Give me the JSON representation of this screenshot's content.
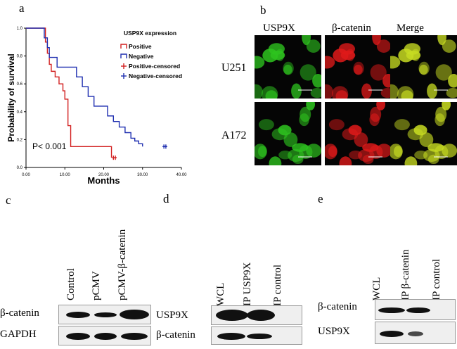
{
  "panels": {
    "a": "a",
    "b": "b",
    "c": "c",
    "d": "d",
    "e": "e"
  },
  "chart_data": {
    "type": "line",
    "title": "",
    "legend_title": "USP9X expression",
    "xlabel": "Months",
    "ylabel": "Probability of survival",
    "annotation": "P< 0.001",
    "xlim": [
      0,
      40
    ],
    "ylim": [
      0,
      1
    ],
    "x_ticks": [
      "0.00",
      "10.00",
      "20.00",
      "30.00",
      "40.00"
    ],
    "y_ticks": [
      "0.0",
      "0.2",
      "0.4",
      "0.6",
      "0.8",
      "1.0"
    ],
    "legend_position": "top-right",
    "legend": [
      "Positive",
      "Negative",
      "Positive-censored",
      "Negative-censored"
    ],
    "series": [
      {
        "name": "Positive",
        "color": "#d21f1f",
        "x": [
          0,
          4,
          5,
          5.5,
          6,
          6.5,
          7.5,
          8.5,
          9.5,
          10,
          10.8,
          11.5,
          20.5,
          22
        ],
        "y": [
          1.0,
          1.0,
          0.9,
          0.82,
          0.74,
          0.69,
          0.65,
          0.6,
          0.55,
          0.49,
          0.3,
          0.15,
          0.15,
          0.07
        ]
      },
      {
        "name": "Negative",
        "color": "#1f2fb0",
        "x": [
          0,
          4,
          4.7,
          5.5,
          6,
          8,
          12,
          13,
          14.5,
          16,
          17.5,
          19,
          21,
          22.5,
          24,
          25.5,
          27,
          28,
          29,
          30
        ],
        "y": [
          1.0,
          1.0,
          0.93,
          0.86,
          0.79,
          0.72,
          0.72,
          0.65,
          0.58,
          0.51,
          0.44,
          0.44,
          0.37,
          0.33,
          0.29,
          0.25,
          0.21,
          0.19,
          0.17,
          0.15
        ]
      }
    ],
    "censored": [
      {
        "name": "Positive-censored",
        "color": "#d21f1f",
        "x": [
          22.5,
          23
        ],
        "y": [
          0.07,
          0.07
        ]
      },
      {
        "name": "Negative-censored",
        "color": "#1f2fb0",
        "x": [
          35.5,
          36
        ],
        "y": [
          0.15,
          0.15
        ]
      }
    ]
  },
  "micrograph": {
    "columns": [
      "USP9X",
      "β-catenin",
      "Merge"
    ],
    "rows": [
      "U251",
      "A172"
    ],
    "colors": [
      "#2ec41f",
      "#e01a1a",
      "#c8dc22"
    ]
  },
  "blot_c": {
    "lanes": [
      "Control",
      "pCMV",
      "pCMV-β-catenin"
    ],
    "rows": [
      "β-catenin",
      "GAPDH"
    ]
  },
  "blot_d": {
    "lanes": [
      "WCL",
      "IP USP9X",
      "IP control"
    ],
    "rows": [
      "USP9X",
      "β-catenin"
    ]
  },
  "blot_e": {
    "lanes": [
      "WCL",
      "IP β-catenin",
      "IP control"
    ],
    "rows": [
      "β-catenin",
      "USP9X"
    ]
  }
}
